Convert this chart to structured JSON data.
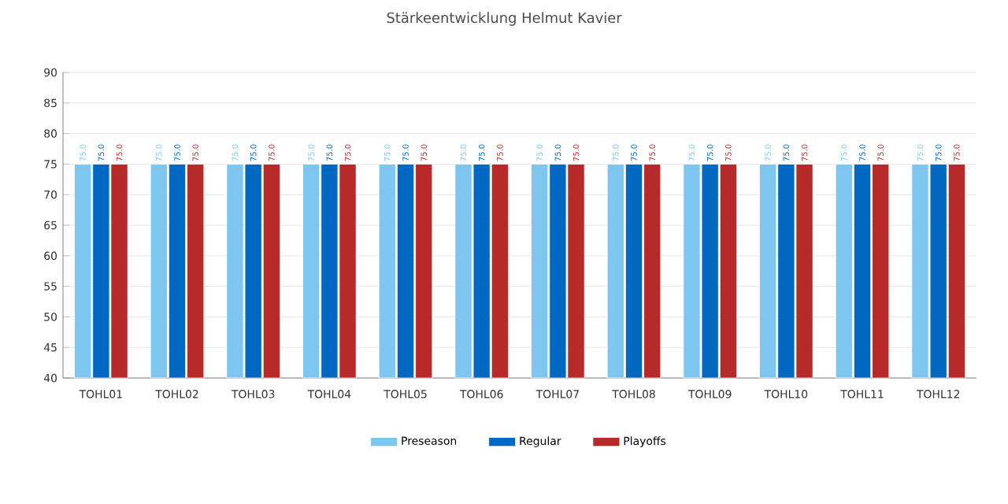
{
  "chart_data": {
    "type": "bar",
    "title": "Stärkeentwicklung Helmut Kavier",
    "categories": [
      "TOHL01",
      "TOHL02",
      "TOHL03",
      "TOHL04",
      "TOHL05",
      "TOHL06",
      "TOHL07",
      "TOHL08",
      "TOHL09",
      "TOHL10",
      "TOHL11",
      "TOHL12"
    ],
    "series": [
      {
        "name": "Preseason",
        "color": "#7cc6f0",
        "values": [
          75,
          75,
          75,
          75,
          75,
          75,
          75,
          75,
          75,
          75,
          75,
          75
        ],
        "value_labels": [
          "75.0",
          "75.0",
          "75.0",
          "75.0",
          "75.0",
          "75.0",
          "75.0",
          "75.0",
          "75.0",
          "75.0",
          "75.0",
          "75.0"
        ]
      },
      {
        "name": "Regular",
        "color": "#0068c0",
        "values": [
          75,
          75,
          75,
          75,
          75,
          75,
          75,
          75,
          75,
          75,
          75,
          75
        ],
        "value_labels": [
          "75.0",
          "75.0",
          "75.0",
          "75.0",
          "75.0",
          "75.0",
          "75.0",
          "75.0",
          "75.0",
          "75.0",
          "75.0",
          "75.0"
        ]
      },
      {
        "name": "Playoffs",
        "color": "#b72a2a",
        "values": [
          75,
          75,
          75,
          75,
          75,
          75,
          75,
          75,
          75,
          75,
          75,
          75
        ],
        "value_labels": [
          "75.0",
          "75.0",
          "75.0",
          "75.0",
          "75.0",
          "75.0",
          "75.0",
          "75.0",
          "75.0",
          "75.0",
          "75.0",
          "75.0"
        ]
      }
    ],
    "ylim": [
      40,
      90
    ],
    "yticks": [
      40,
      45,
      50,
      55,
      60,
      65,
      70,
      75,
      80,
      85,
      90
    ],
    "grid": "y",
    "legend": "bottom"
  }
}
